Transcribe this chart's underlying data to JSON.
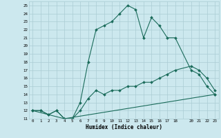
{
  "title": "",
  "xlabel": "Humidex (Indice chaleur)",
  "ylabel": "",
  "xlim": [
    -0.5,
    23.5
  ],
  "ylim": [
    11,
    25.5
  ],
  "bg_color": "#cce8ee",
  "grid_color": "#aaccd4",
  "line_color": "#1a6b5a",
  "line1_x": [
    0,
    1,
    2,
    3,
    4,
    5,
    6,
    7,
    8,
    9,
    10,
    11,
    12,
    13,
    14,
    15,
    16,
    17,
    18,
    20,
    21,
    22,
    23
  ],
  "line1_y": [
    12.0,
    12.0,
    11.5,
    12.0,
    11.0,
    11.0,
    13.0,
    18.0,
    22.0,
    22.5,
    23.0,
    24.0,
    25.0,
    24.5,
    21.0,
    23.5,
    22.5,
    21.0,
    21.0,
    17.0,
    16.5,
    15.0,
    14.0
  ],
  "line2_x": [
    0,
    1,
    2,
    3,
    4,
    5,
    6,
    7,
    8,
    9,
    10,
    11,
    12,
    13,
    14,
    15,
    16,
    17,
    18,
    20,
    21,
    22,
    23
  ],
  "line2_y": [
    12.0,
    12.0,
    11.5,
    12.0,
    11.0,
    11.0,
    12.0,
    13.5,
    14.5,
    14.0,
    14.5,
    14.5,
    15.0,
    15.0,
    15.5,
    15.5,
    16.0,
    16.5,
    17.0,
    17.5,
    17.0,
    16.0,
    14.5
  ],
  "line3_x": [
    0,
    4,
    23
  ],
  "line3_y": [
    12.0,
    11.0,
    14.0
  ],
  "yticks": [
    11,
    12,
    13,
    14,
    15,
    16,
    17,
    18,
    19,
    20,
    21,
    22,
    23,
    24,
    25
  ],
  "xticks": [
    0,
    1,
    2,
    3,
    4,
    5,
    6,
    7,
    8,
    9,
    10,
    11,
    12,
    13,
    14,
    15,
    16,
    17,
    18,
    20,
    21,
    22,
    23
  ],
  "xtick_labels": [
    "0",
    "1",
    "2",
    "3",
    "4",
    "5",
    "6",
    "7",
    "8",
    "9",
    "10",
    "11",
    "12",
    "13",
    "14",
    "15",
    "16",
    "17",
    "18",
    "20",
    "21",
    "22",
    "23"
  ],
  "marker": "D",
  "markersize": 2.0,
  "linewidth": 0.8
}
